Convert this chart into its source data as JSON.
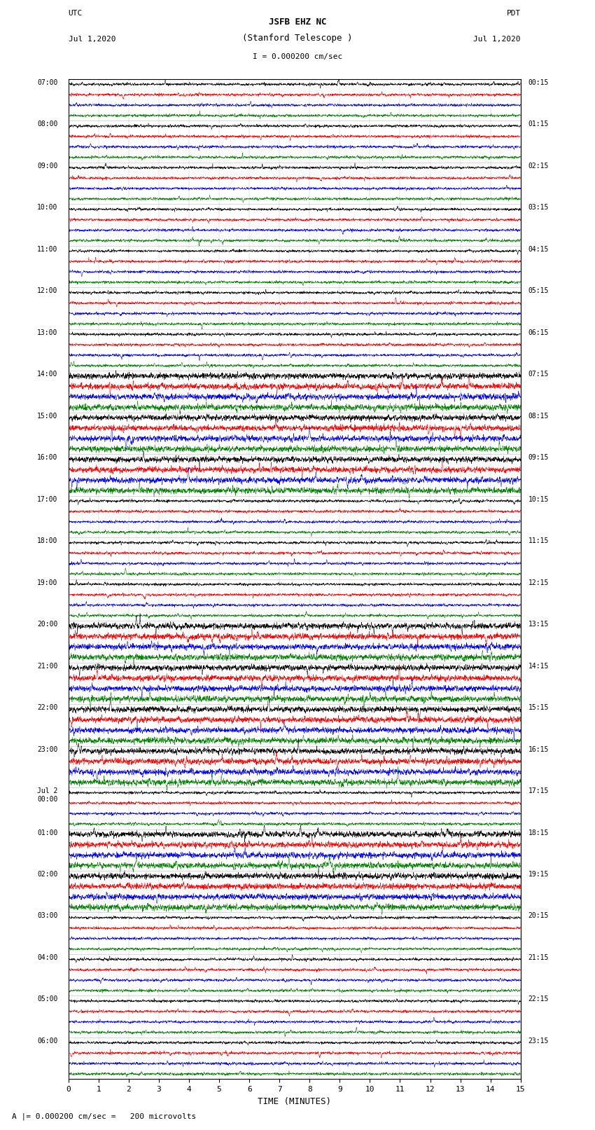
{
  "title_line1": "JSFB EHZ NC",
  "title_line2": "(Stanford Telescope )",
  "scale_text": "I = 0.000200 cm/sec",
  "footer_text": "A |= 0.000200 cm/sec =   200 microvolts",
  "xlabel": "TIME (MINUTES)",
  "xmin": 0,
  "xmax": 15,
  "xticks": [
    0,
    1,
    2,
    3,
    4,
    5,
    6,
    7,
    8,
    9,
    10,
    11,
    12,
    13,
    14,
    15
  ],
  "trace_colors_cycle": [
    "black",
    "red",
    "blue",
    "green"
  ],
  "background": "white",
  "n_rows": 96,
  "figsize": [
    8.5,
    16.13
  ],
  "dpi": 100,
  "utc_labels": [
    "07:00",
    "",
    "",
    "",
    "08:00",
    "",
    "",
    "",
    "09:00",
    "",
    "",
    "",
    "10:00",
    "",
    "",
    "",
    "11:00",
    "",
    "",
    "",
    "12:00",
    "",
    "",
    "",
    "13:00",
    "",
    "",
    "",
    "14:00",
    "",
    "",
    "",
    "15:00",
    "",
    "",
    "",
    "16:00",
    "",
    "",
    "",
    "17:00",
    "",
    "",
    "",
    "18:00",
    "",
    "",
    "",
    "19:00",
    "",
    "",
    "",
    "20:00",
    "",
    "",
    "",
    "21:00",
    "",
    "",
    "",
    "22:00",
    "",
    "",
    "",
    "23:00",
    "",
    "",
    "",
    "Jul 2\n00:00",
    "",
    "",
    "",
    "01:00",
    "",
    "",
    "",
    "02:00",
    "",
    "",
    "",
    "03:00",
    "",
    "",
    "",
    "04:00",
    "",
    "",
    "",
    "05:00",
    "",
    "",
    "",
    "06:00",
    "",
    "",
    ""
  ],
  "pdt_labels": [
    "00:15",
    "",
    "",
    "",
    "01:15",
    "",
    "",
    "",
    "02:15",
    "",
    "",
    "",
    "03:15",
    "",
    "",
    "",
    "04:15",
    "",
    "",
    "",
    "05:15",
    "",
    "",
    "",
    "06:15",
    "",
    "",
    "",
    "07:15",
    "",
    "",
    "",
    "08:15",
    "",
    "",
    "",
    "09:15",
    "",
    "",
    "",
    "10:15",
    "",
    "",
    "",
    "11:15",
    "",
    "",
    "",
    "12:15",
    "",
    "",
    "",
    "13:15",
    "",
    "",
    "",
    "14:15",
    "",
    "",
    "",
    "15:15",
    "",
    "",
    "",
    "16:15",
    "",
    "",
    "",
    "17:15",
    "",
    "",
    "",
    "18:15",
    "",
    "",
    "",
    "19:15",
    "",
    "",
    "",
    "20:15",
    "",
    "",
    "",
    "21:15",
    "",
    "",
    "",
    "22:15",
    "",
    "",
    "",
    "23:15",
    "",
    "",
    ""
  ],
  "noise_base": 0.08,
  "spike_base": 0.18,
  "n_points": 3000,
  "linewidth": 0.35
}
